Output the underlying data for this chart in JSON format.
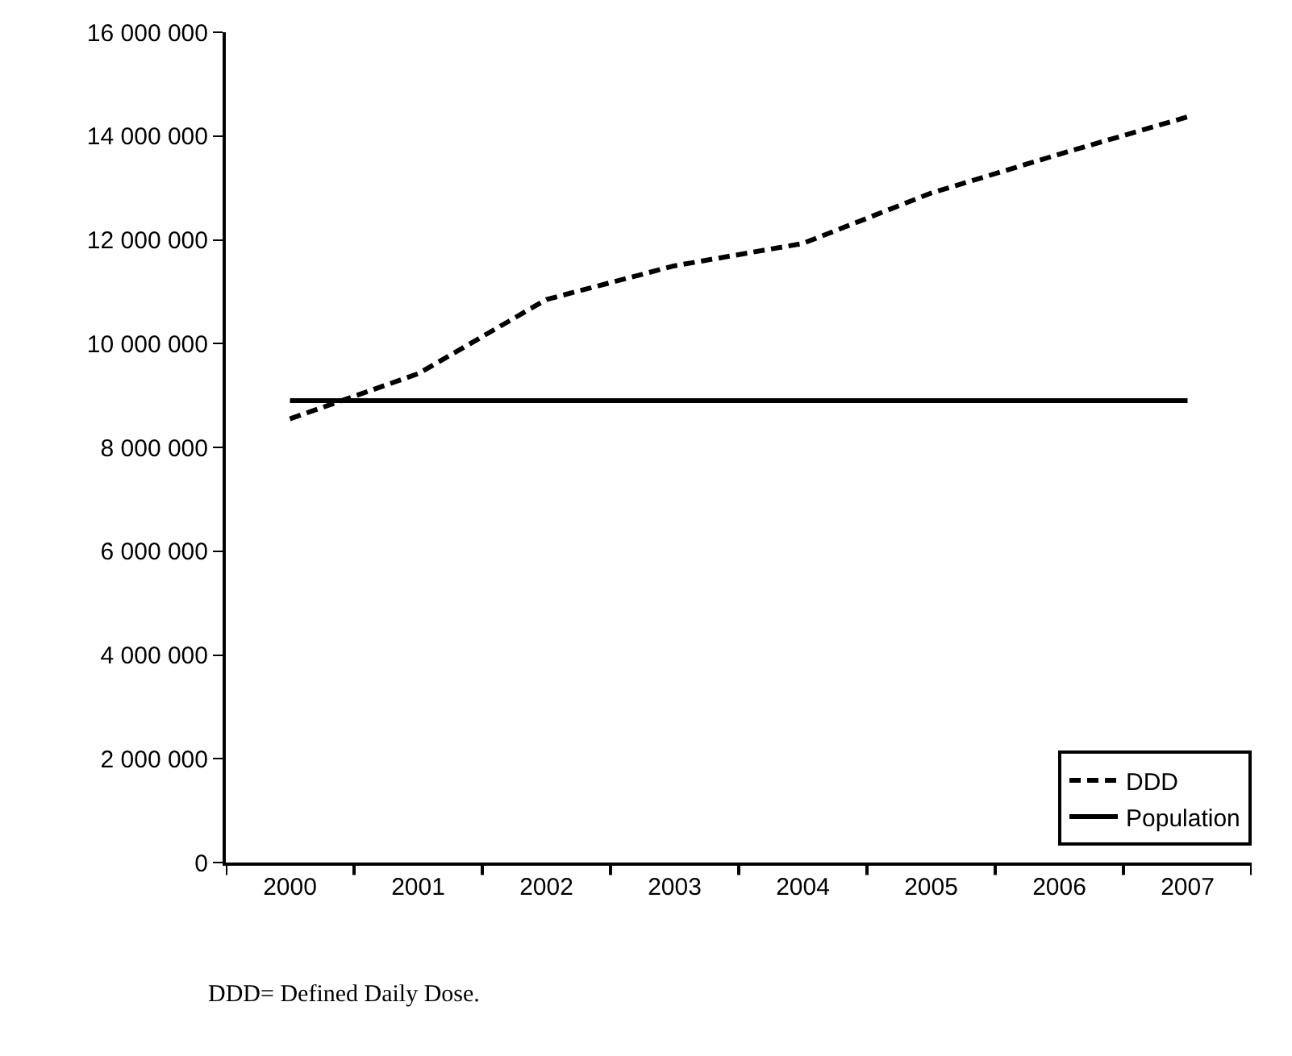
{
  "chart_data": {
    "type": "line",
    "categories": [
      "2000",
      "2001",
      "2002",
      "2003",
      "2004",
      "2005",
      "2006",
      "2007"
    ],
    "series": [
      {
        "name": "DDD",
        "color": "#000000",
        "line_style": "dashed",
        "values": [
          8550000,
          9420000,
          10850000,
          11500000,
          11930000,
          12900000,
          13650000,
          14370000
        ]
      },
      {
        "name": "Population",
        "color": "#000000",
        "line_style": "solid",
        "values": [
          8900000,
          8900000,
          8900000,
          8900000,
          8900000,
          8900000,
          8900000,
          8900000
        ]
      }
    ],
    "ylim": [
      0,
      16000000
    ],
    "yticks": [
      {
        "value": 0,
        "label": "0"
      },
      {
        "value": 2000000,
        "label": "2 000 000"
      },
      {
        "value": 4000000,
        "label": "4 000 000"
      },
      {
        "value": 6000000,
        "label": "6 000 000"
      },
      {
        "value": 8000000,
        "label": "8 000 000"
      },
      {
        "value": 10000000,
        "label": "10 000 000"
      },
      {
        "value": 12000000,
        "label": "12 000 000"
      },
      {
        "value": 14000000,
        "label": "14 000 000"
      },
      {
        "value": 16000000,
        "label": "16 000 000"
      }
    ],
    "legend": "bottom right",
    "marker": "none",
    "annotations": [
      "DDD= Defined Daily Dose."
    ]
  }
}
